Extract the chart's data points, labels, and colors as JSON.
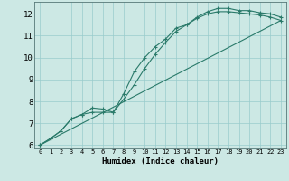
{
  "xlabel": "Humidex (Indice chaleur)",
  "bg_color": "#cce8e4",
  "grid_color": "#99cccc",
  "line_color": "#2a7a6a",
  "xlim": [
    -0.5,
    23.5
  ],
  "ylim": [
    5.85,
    12.55
  ],
  "xticks": [
    0,
    1,
    2,
    3,
    4,
    5,
    6,
    7,
    8,
    9,
    10,
    11,
    12,
    13,
    14,
    15,
    16,
    17,
    18,
    19,
    20,
    21,
    22,
    23
  ],
  "yticks": [
    6,
    7,
    8,
    9,
    10,
    11,
    12
  ],
  "line1_x": [
    0,
    1,
    2,
    3,
    4,
    5,
    6,
    7,
    8,
    9,
    10,
    11,
    12,
    13,
    14,
    15,
    16,
    17,
    18,
    19,
    20,
    21,
    22,
    23
  ],
  "line1_y": [
    6.0,
    6.3,
    6.65,
    7.2,
    7.4,
    7.7,
    7.65,
    7.5,
    8.35,
    9.35,
    10.0,
    10.5,
    10.85,
    11.35,
    11.5,
    11.85,
    12.1,
    12.25,
    12.25,
    12.15,
    12.15,
    12.05,
    12.0,
    11.85
  ],
  "line2_x": [
    0,
    1,
    2,
    3,
    4,
    5,
    6,
    7,
    8,
    9,
    10,
    11,
    12,
    13,
    14,
    15,
    16,
    17,
    18,
    19,
    20,
    21,
    22,
    23
  ],
  "line2_y": [
    6.0,
    6.3,
    6.65,
    7.2,
    7.4,
    7.5,
    7.5,
    7.5,
    8.1,
    8.75,
    9.5,
    10.15,
    10.7,
    11.2,
    11.5,
    11.8,
    12.0,
    12.1,
    12.1,
    12.05,
    12.0,
    11.95,
    11.85,
    11.7
  ],
  "line3_x": [
    0,
    23
  ],
  "line3_y": [
    6.0,
    11.7
  ],
  "xlabel_fontsize": 6.5,
  "tick_fontsize_x": 5.0,
  "tick_fontsize_y": 6.5
}
